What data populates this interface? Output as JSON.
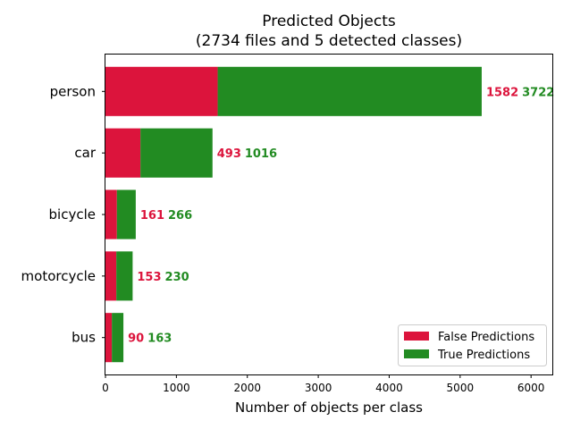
{
  "chart_data": {
    "type": "bar",
    "orientation": "horizontal",
    "stacked": true,
    "title": "Predicted Objects",
    "subtitle": "(2734 files and 5 detected classes)",
    "xlabel": "Number of objects per class",
    "ylabel": "",
    "categories": [
      "bus",
      "motorcycle",
      "bicycle",
      "car",
      "person"
    ],
    "series": [
      {
        "name": "False Predictions",
        "color": "#dc143c",
        "values": [
          90,
          153,
          161,
          493,
          1582
        ]
      },
      {
        "name": "True Predictions",
        "color": "#228b22",
        "values": [
          163,
          230,
          266,
          1016,
          3722
        ]
      }
    ],
    "xlim": [
      0,
      6300
    ],
    "xticks": [
      "0",
      "1000",
      "2000",
      "3000",
      "4000",
      "5000",
      "6000"
    ],
    "grid": false,
    "legend_position": "lower-right"
  }
}
